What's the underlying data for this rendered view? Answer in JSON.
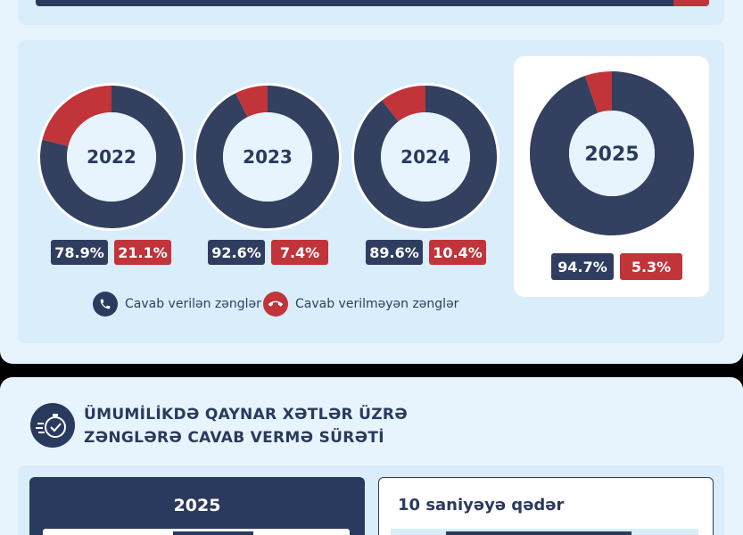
{
  "chart_data": {
    "type": "pie",
    "series": [
      {
        "year": "2022",
        "values": [
          78.9,
          21.1
        ]
      },
      {
        "year": "2023",
        "values": [
          92.6,
          7.4
        ]
      },
      {
        "year": "2024",
        "values": [
          89.6,
          10.4
        ]
      },
      {
        "year": "2025",
        "values": [
          94.7,
          5.3
        ]
      }
    ],
    "labels": [
      "Cavab verilən zənglər",
      "Cavab verilməyən zənglər"
    ],
    "colors": {
      "answered": "#33405f",
      "missed": "#c0343a"
    }
  },
  "donuts": [
    {
      "year": "2022",
      "answered_label": "78.9%",
      "missed_label": "21.1%"
    },
    {
      "year": "2023",
      "answered_label": "92.6%",
      "missed_label": "7.4%"
    },
    {
      "year": "2024",
      "answered_label": "89.6%",
      "missed_label": "10.4%"
    },
    {
      "year": "2025",
      "answered_label": "94.7%",
      "missed_label": "5.3%"
    }
  ],
  "legend": {
    "answered": "Cavab verilən zənglər",
    "missed": "Cavab verilməyən zənglər",
    "answered_icon": "phone-icon",
    "missed_icon": "phone-hangup-icon"
  },
  "section2": {
    "icon": "stopwatch-icon",
    "title_line1": "ÜMUMİLİKDƏ QAYNAR XƏTLƏR ÜZRƏ",
    "title_line2": "ZƏNGLƏRƏ CAVAB VERMƏ SÜRƏTİ",
    "left_year": "2025",
    "right_title": "10 saniyəyə qədər"
  }
}
